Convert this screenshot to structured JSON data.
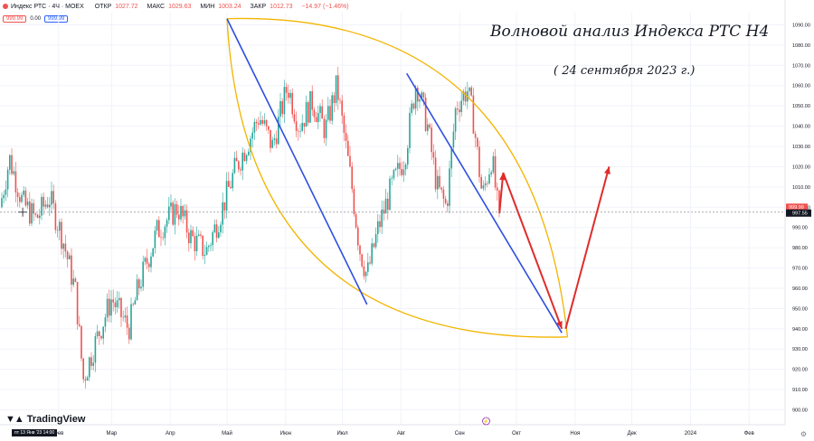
{
  "header": {
    "symbol": "Индекс РТС · 4Ч · MOEX",
    "ohlc": [
      {
        "label": "ОТКР",
        "value": "1027.72"
      },
      {
        "label": "МАКС",
        "value": "1029.63"
      },
      {
        "label": "МИН",
        "value": "1003.24"
      },
      {
        "label": "ЗАКР",
        "value": "1012.73"
      }
    ],
    "change": "−14.97 (−1.46%)",
    "sell_price": "999.99",
    "spread": "0.00",
    "buy_price": "999.99",
    "currency": "USD"
  },
  "annotation": {
    "title": "Волновой анализ Индекса РТС Н4",
    "subtitle": "( 24 сентября 2023 г.)"
  },
  "footer": {
    "brand": "TradingView",
    "cursor_date": "пт 13 Янв '23  14:00"
  },
  "chart_data": {
    "type": "candlestick",
    "ylim": [
      898,
      1096
    ],
    "y_ticks": [
      "900.00",
      "910.00",
      "920.00",
      "930.00",
      "940.00",
      "950.00",
      "960.00",
      "970.00",
      "980.00",
      "990.00",
      "1000.00",
      "1010.00",
      "1020.00",
      "1030.00",
      "1040.00",
      "1050.00",
      "1060.00",
      "1070.00",
      "1080.00",
      "1090.00"
    ],
    "x_labels": [
      "Фев",
      "Мар",
      "Апр",
      "Май",
      "Июн",
      "Июл",
      "Авг",
      "Сен",
      "Окт",
      "Ноя",
      "Дек",
      "2024",
      "Фев"
    ],
    "last_price_label": "997.55",
    "sell_price_label": "999.99",
    "colors": {
      "up": "#26a69a",
      "down": "#ef5350",
      "wave": "#2f4fe0",
      "forecast": "#e02b2b",
      "envelope": "#f3b400"
    },
    "price_path": [
      {
        "date": "2023-01-01",
        "price": 1000
      },
      {
        "date": "2023-01-06",
        "price": 1024
      },
      {
        "date": "2023-01-13",
        "price": 1002
      },
      {
        "date": "2023-01-20",
        "price": 994
      },
      {
        "date": "2023-01-27",
        "price": 1005
      },
      {
        "date": "2023-02-03",
        "price": 985
      },
      {
        "date": "2023-02-10",
        "price": 958
      },
      {
        "date": "2023-02-14",
        "price": 915
      },
      {
        "date": "2023-02-20",
        "price": 932
      },
      {
        "date": "2023-03-01",
        "price": 955
      },
      {
        "date": "2023-03-10",
        "price": 940
      },
      {
        "date": "2023-03-15",
        "price": 960
      },
      {
        "date": "2023-03-25",
        "price": 988
      },
      {
        "date": "2023-04-05",
        "price": 1000
      },
      {
        "date": "2023-04-12",
        "price": 985
      },
      {
        "date": "2023-04-20",
        "price": 978
      },
      {
        "date": "2023-04-28",
        "price": 998
      },
      {
        "date": "2023-05-05",
        "price": 1018
      },
      {
        "date": "2023-05-12",
        "price": 1032
      },
      {
        "date": "2023-05-18",
        "price": 1045
      },
      {
        "date": "2023-05-25",
        "price": 1030
      },
      {
        "date": "2023-06-02",
        "price": 1060
      },
      {
        "date": "2023-06-08",
        "price": 1040
      },
      {
        "date": "2023-06-15",
        "price": 1052
      },
      {
        "date": "2023-06-22",
        "price": 1038
      },
      {
        "date": "2023-06-28",
        "price": 1060
      },
      {
        "date": "2023-07-06",
        "price": 1010
      },
      {
        "date": "2023-07-10",
        "price": 980
      },
      {
        "date": "2023-07-14",
        "price": 966
      },
      {
        "date": "2023-07-20",
        "price": 990
      },
      {
        "date": "2023-07-27",
        "price": 1010
      },
      {
        "date": "2023-08-03",
        "price": 1025
      },
      {
        "date": "2023-08-09",
        "price": 1062
      },
      {
        "date": "2023-08-15",
        "price": 1040
      },
      {
        "date": "2023-08-20",
        "price": 1010
      },
      {
        "date": "2023-08-25",
        "price": 1000
      },
      {
        "date": "2023-08-30",
        "price": 1050
      },
      {
        "date": "2023-09-05",
        "price": 1058
      },
      {
        "date": "2023-09-08",
        "price": 1045
      },
      {
        "date": "2023-09-13",
        "price": 1005
      },
      {
        "date": "2023-09-18",
        "price": 1025
      },
      {
        "date": "2023-09-22",
        "price": 992
      }
    ],
    "wave_lines": [
      {
        "from": {
          "date": "2023-05-01",
          "price": 1093
        },
        "to": {
          "date": "2023-07-14",
          "price": 952
        }
      },
      {
        "from": {
          "date": "2023-08-04",
          "price": 1066
        },
        "to": {
          "date": "2023-10-25",
          "price": 938
        }
      }
    ],
    "forecast_arrows": [
      {
        "from": {
          "date": "2023-09-22",
          "price": 997
        },
        "to": {
          "date": "2023-09-24",
          "price": 1017
        }
      },
      {
        "from": {
          "date": "2023-09-24",
          "price": 1017
        },
        "to": {
          "date": "2023-10-25",
          "price": 940
        }
      },
      {
        "from": {
          "date": "2023-10-27",
          "price": 940
        },
        "to": {
          "date": "2023-11-19",
          "price": 1020
        }
      }
    ],
    "envelope_arcs": [
      {
        "from": {
          "date": "2023-05-01",
          "price": 1093
        },
        "to": {
          "date": "2023-10-28",
          "price": 936
        }
      },
      {
        "from": {
          "date": "2023-05-01",
          "price": 1093
        },
        "to": {
          "date": "2023-10-28",
          "price": 936
        }
      }
    ]
  }
}
